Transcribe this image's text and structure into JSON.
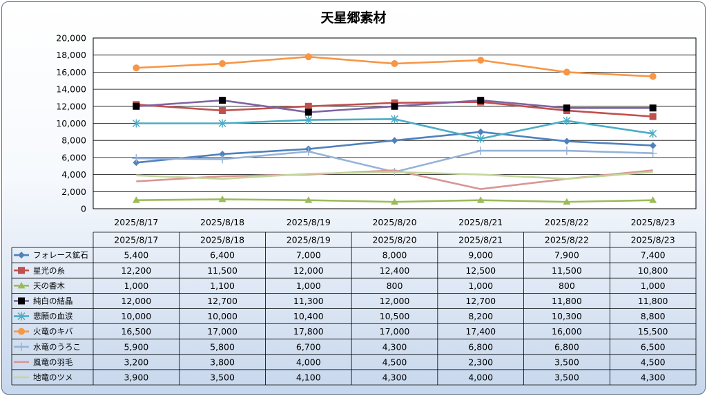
{
  "chart_data": {
    "type": "line",
    "title": "天星郷素材",
    "xlabel": "",
    "ylabel": "",
    "ylim": [
      0,
      20000
    ],
    "yticks": [
      "0",
      "2,000",
      "4,000",
      "6,000",
      "8,000",
      "10,000",
      "12,000",
      "14,000",
      "16,000",
      "18,000",
      "20,000"
    ],
    "grid": true,
    "legend": "data-table-bottom",
    "categories": [
      "2025/8/17",
      "2025/8/18",
      "2025/8/19",
      "2025/8/20",
      "2025/8/21",
      "2025/8/22",
      "2025/8/23"
    ],
    "series": [
      {
        "name": "フォレース鉱石",
        "color": "#4f81bd",
        "marker": "diamond",
        "values": [
          5400,
          6400,
          7000,
          8000,
          9000,
          7900,
          7400
        ],
        "labels": [
          "5,400",
          "6,400",
          "7,000",
          "8,000",
          "9,000",
          "7,900",
          "7,400"
        ]
      },
      {
        "name": "星光の糸",
        "color": "#c0504d",
        "marker": "square",
        "values": [
          12200,
          11500,
          12000,
          12400,
          12500,
          11500,
          10800
        ],
        "labels": [
          "12,200",
          "11,500",
          "12,000",
          "12,400",
          "12,500",
          "11,500",
          "10,800"
        ]
      },
      {
        "name": "天の香木",
        "color": "#9bbb59",
        "marker": "triangle",
        "values": [
          1000,
          1100,
          1000,
          800,
          1000,
          800,
          1000
        ],
        "labels": [
          "1,000",
          "1,100",
          "1,000",
          "800",
          "1,000",
          "800",
          "1,000"
        ]
      },
      {
        "name": "純白の結晶",
        "color": "#8064a2",
        "marker": "square-black",
        "values": [
          12000,
          12700,
          11300,
          12000,
          12700,
          11800,
          11800
        ],
        "labels": [
          "12,000",
          "12,700",
          "11,300",
          "12,000",
          "12,700",
          "11,800",
          "11,800"
        ]
      },
      {
        "name": "悲願の血涙",
        "color": "#4bacc6",
        "marker": "star",
        "values": [
          10000,
          10000,
          10400,
          10500,
          8200,
          10300,
          8800
        ],
        "labels": [
          "10,000",
          "10,000",
          "10,400",
          "10,500",
          "8,200",
          "10,300",
          "8,800"
        ]
      },
      {
        "name": "火竜のキバ",
        "color": "#f79646",
        "marker": "circle",
        "values": [
          16500,
          17000,
          17800,
          17000,
          17400,
          16000,
          15500
        ],
        "labels": [
          "16,500",
          "17,000",
          "17,800",
          "17,000",
          "17,400",
          "16,000",
          "15,500"
        ]
      },
      {
        "name": "水竜のうろこ",
        "color": "#95b3d7",
        "marker": "plus",
        "values": [
          5900,
          5800,
          6700,
          4300,
          6800,
          6800,
          6500
        ],
        "labels": [
          "5,900",
          "5,800",
          "6,700",
          "4,300",
          "6,800",
          "6,800",
          "6,500"
        ]
      },
      {
        "name": "風竜の羽毛",
        "color": "#d99694",
        "marker": "none",
        "values": [
          3200,
          3800,
          4000,
          4500,
          2300,
          3500,
          4500
        ],
        "labels": [
          "3,200",
          "3,800",
          "4,000",
          "4,500",
          "2,300",
          "3,500",
          "4,500"
        ]
      },
      {
        "name": "地竜のツメ",
        "color": "#c3d69b",
        "marker": "none",
        "values": [
          3900,
          3500,
          4100,
          4300,
          4000,
          3500,
          4300
        ],
        "labels": [
          "3,900",
          "3,500",
          "4,100",
          "4,300",
          "4,000",
          "3,500",
          "4,300"
        ]
      }
    ]
  }
}
